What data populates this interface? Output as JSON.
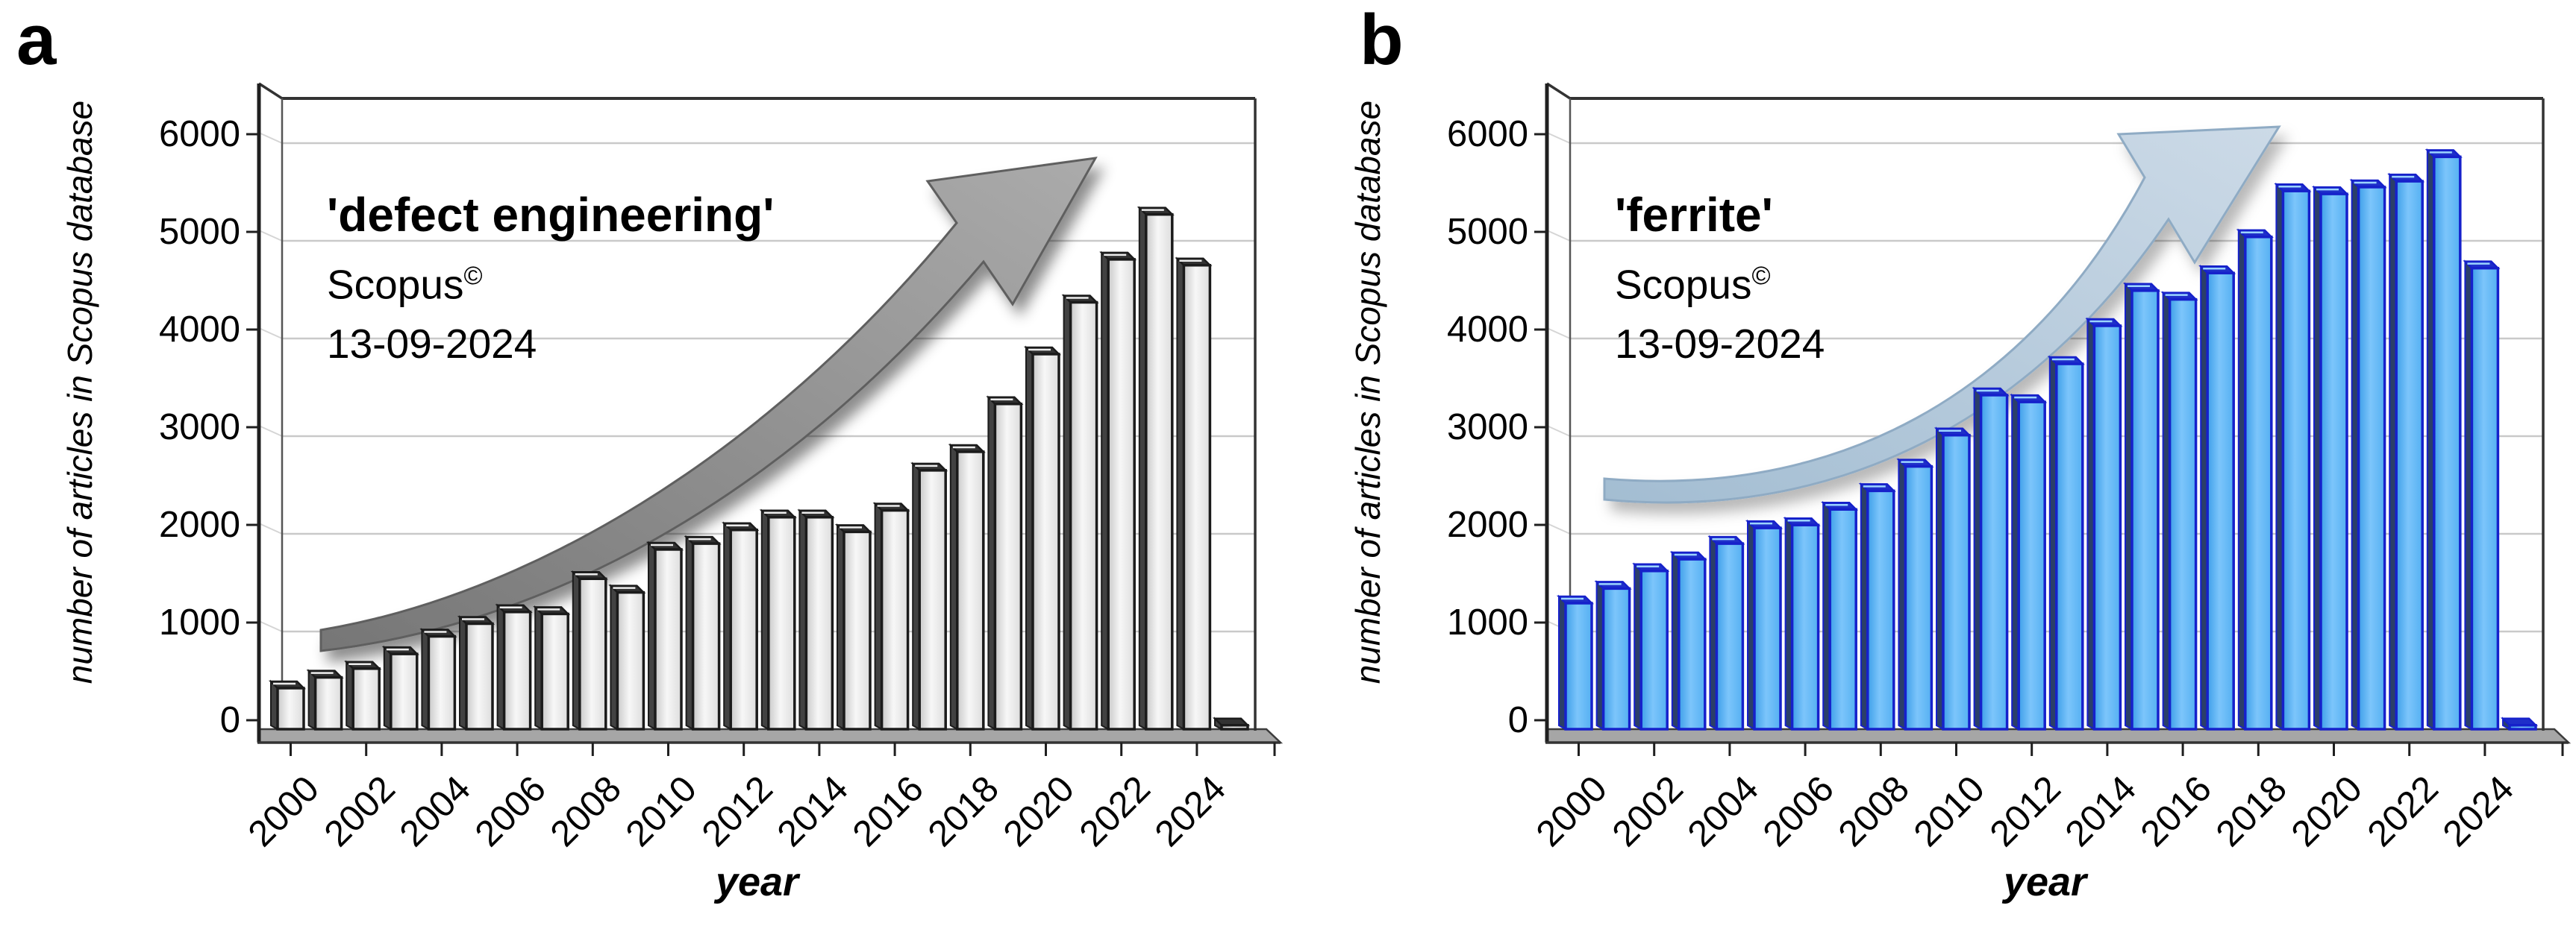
{
  "figure": {
    "background": "#ffffff",
    "description": "Two 3D bar charts of yearly article counts in the Scopus database"
  },
  "charts": [
    {
      "panel_label": "a",
      "title": "'defect engineering'",
      "source": "Scopus",
      "copyright": "©",
      "date": "13-09-2024",
      "ylabel": "number of articles in Scopus database",
      "xlabel": "year",
      "style": {
        "bar_fill": [
          "#c9c9c9",
          "#f7f7f7",
          "#dddddd"
        ],
        "bar_edge": "#1b1b1b",
        "bar_side": "#424242",
        "bar_cap": "#323232",
        "cap_highlight": "#ececec",
        "arrow_fill": [
          "#767676",
          "#ababab"
        ],
        "arrow_stroke": "#5e5e5e",
        "arrow_shadow_opacity": 0.45
      }
    },
    {
      "panel_label": "b",
      "title": "'ferrite'",
      "source": "Scopus",
      "copyright": "©",
      "date": "13-09-2024",
      "ylabel": "number of articles in Scopus database",
      "xlabel": "year",
      "style": {
        "bar_fill": [
          "#3e9fe9",
          "#7cc5fb",
          "#55b0f2"
        ],
        "bar_edge": "#1621cb",
        "bar_side": "#2b3f69",
        "bar_cap": "#1f2fc9",
        "cap_highlight": "#9bd4ff",
        "arrow_fill": [
          "#a3bdd2",
          "#ccdae7"
        ],
        "arrow_stroke": "#8fabc4",
        "arrow_shadow_opacity": 0.28
      }
    }
  ],
  "chart_data": [
    {
      "type": "bar",
      "title": "'defect engineering'",
      "annotation_source": "Scopus©",
      "annotation_date": "13-09-2024",
      "xlabel": "year",
      "ylabel": "number of articles in Scopus database",
      "ylim": [
        0,
        6000
      ],
      "ytick_step": 1000,
      "y_ticks": [
        "0",
        "1000",
        "2000",
        "3000",
        "4000",
        "5000",
        "6000"
      ],
      "x_tick_labels": [
        "2000",
        "2002",
        "2004",
        "2006",
        "2008",
        "2010",
        "2012",
        "2014",
        "2016",
        "2018",
        "2020",
        "2022",
        "2024"
      ],
      "years": [
        2000,
        2001,
        2002,
        2003,
        2004,
        2005,
        2006,
        2007,
        2008,
        2009,
        2010,
        2011,
        2012,
        2013,
        2014,
        2015,
        2016,
        2017,
        2018,
        2019,
        2020,
        2021,
        2022,
        2023,
        2024,
        2025
      ],
      "values": [
        420,
        530,
        620,
        770,
        950,
        1080,
        1200,
        1180,
        1540,
        1400,
        1840,
        1900,
        2040,
        2170,
        2170,
        2020,
        2240,
        2650,
        2840,
        3330,
        3840,
        4370,
        4810,
        5270,
        4750,
        40
      ],
      "grid": true,
      "legend": "none",
      "annotations": [
        "large gray 3D curved arrow pointing up-right indicating rising trend"
      ]
    },
    {
      "type": "bar",
      "title": "'ferrite'",
      "annotation_source": "Scopus©",
      "annotation_date": "13-09-2024",
      "xlabel": "year",
      "ylabel": "number of articles in Scopus database",
      "ylim": [
        0,
        6000
      ],
      "ytick_step": 1000,
      "y_ticks": [
        "0",
        "1000",
        "2000",
        "3000",
        "4000",
        "5000",
        "6000"
      ],
      "x_tick_labels": [
        "2000",
        "2002",
        "2004",
        "2006",
        "2008",
        "2010",
        "2012",
        "2014",
        "2016",
        "2018",
        "2020",
        "2022",
        "2024"
      ],
      "years": [
        2000,
        2001,
        2002,
        2003,
        2004,
        2005,
        2006,
        2007,
        2008,
        2009,
        2010,
        2011,
        2012,
        2013,
        2014,
        2015,
        2016,
        2017,
        2018,
        2019,
        2020,
        2021,
        2022,
        2023,
        2024,
        2025
      ],
      "values": [
        1290,
        1440,
        1620,
        1740,
        1900,
        2060,
        2090,
        2250,
        2440,
        2690,
        3010,
        3420,
        3350,
        3740,
        4130,
        4490,
        4400,
        4670,
        5040,
        5510,
        5480,
        5550,
        5610,
        5860,
        4720,
        40
      ],
      "grid": true,
      "legend": "none",
      "annotations": [
        "large light-blue 3D curved arrow pointing up-right indicating rising trend"
      ]
    }
  ]
}
